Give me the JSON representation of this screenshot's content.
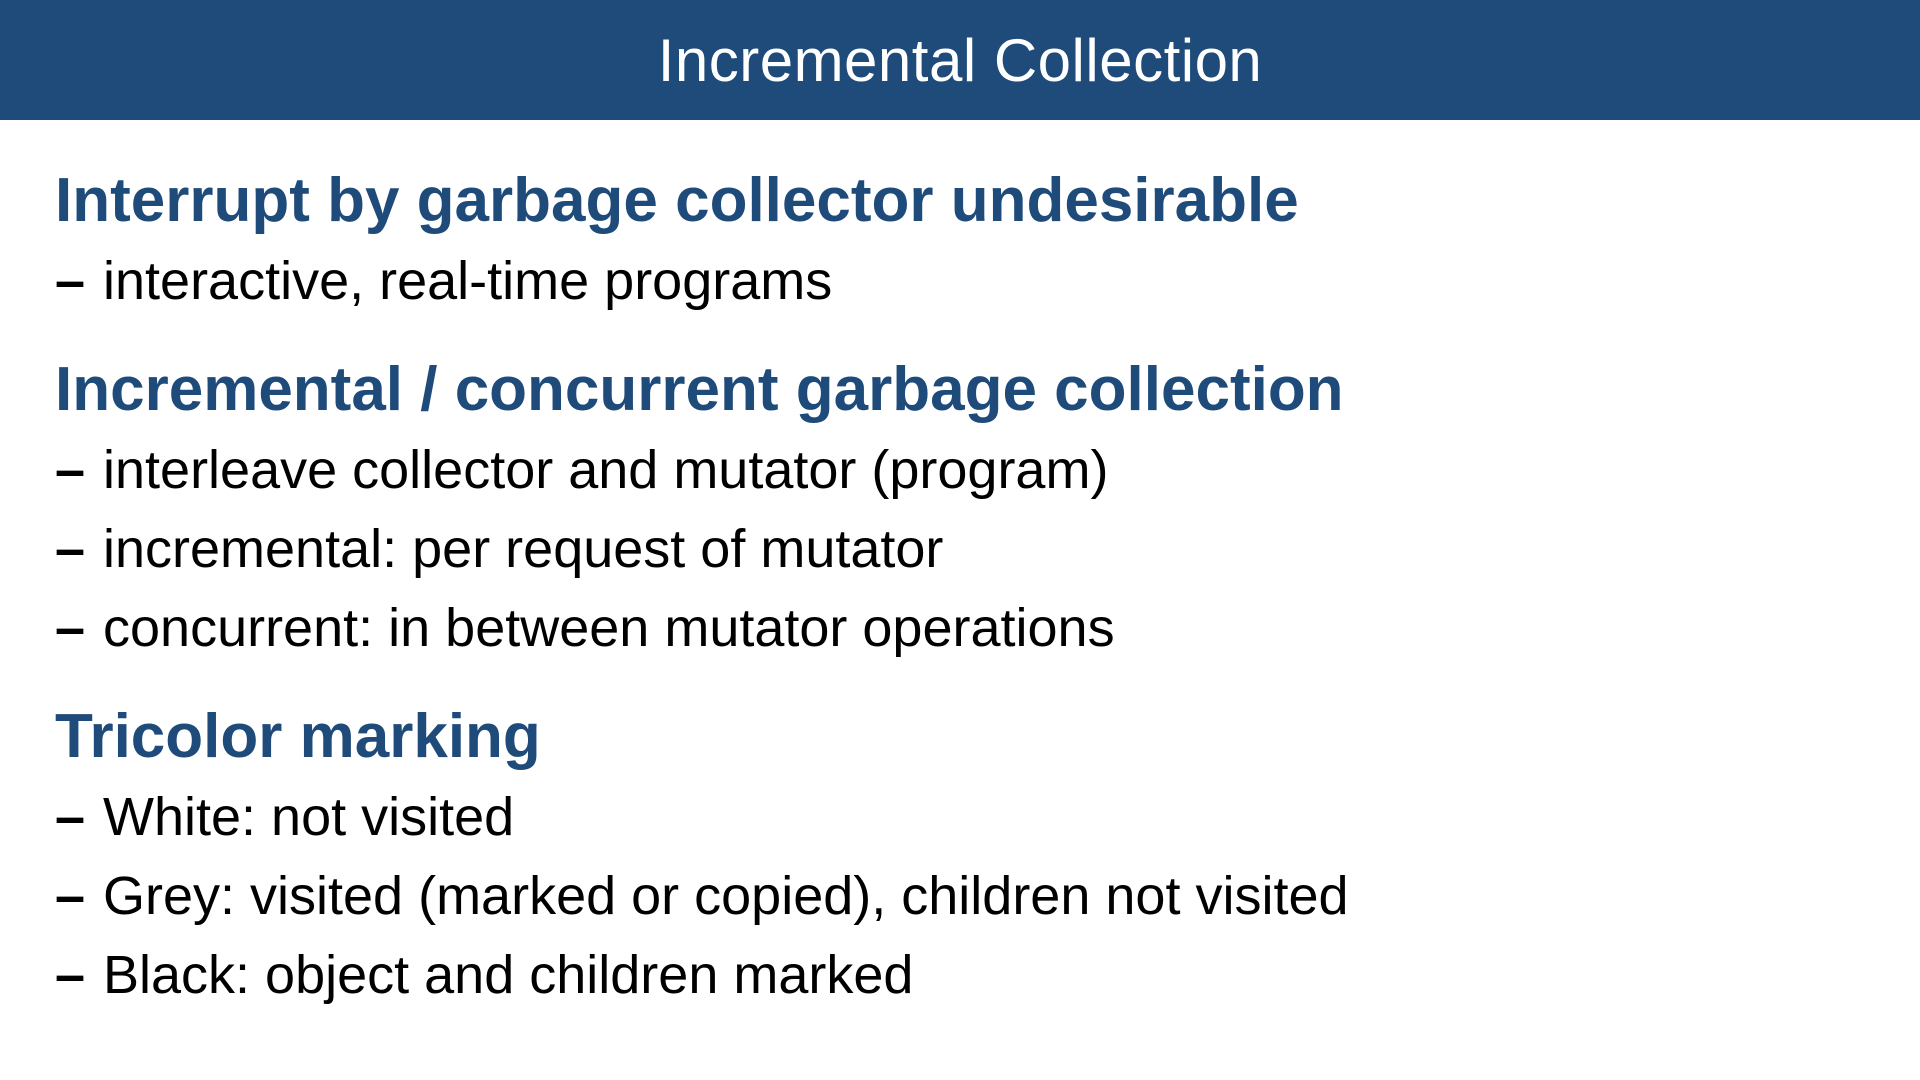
{
  "slide": {
    "title": "Incremental Collection",
    "sections": [
      {
        "heading": "Interrupt by garbage collector undesirable",
        "bullets": [
          "interactive, real-time programs"
        ]
      },
      {
        "heading": "Incremental / concurrent garbage collection",
        "bullets": [
          "interleave collector and mutator (program)",
          "incremental: per request of mutator",
          "concurrent: in between mutator operations"
        ]
      },
      {
        "heading": "Tricolor marking",
        "bullets": [
          "White: not visited",
          "Grey: visited (marked or copied), children not visited",
          "Black: object and children marked"
        ]
      }
    ],
    "bullet_marker": "–"
  },
  "colors": {
    "title_bar": "#1f4b7b",
    "heading": "#1f4b7b",
    "body_text": "#000000"
  }
}
